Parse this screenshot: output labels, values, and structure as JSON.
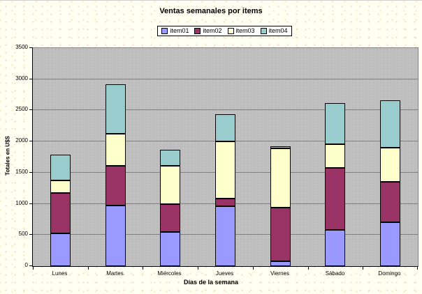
{
  "chart_data": {
    "type": "bar",
    "stacked": true,
    "title": "Ventas semanales por items",
    "xlabel": "Días de la semana",
    "ylabel": "Totales en U$S",
    "categories": [
      "Lunes",
      "Martes",
      "Miércoles",
      "Jueves",
      "Viernes",
      "Sábado",
      "Domingo"
    ],
    "series": [
      {
        "name": "item01",
        "color": "#9999FF",
        "values": [
          520,
          970,
          550,
          960,
          80,
          580,
          700
        ]
      },
      {
        "name": "item02",
        "color": "#993366",
        "values": [
          650,
          640,
          450,
          130,
          860,
          1000,
          650
        ]
      },
      {
        "name": "item03",
        "color": "#FFFFCC",
        "values": [
          200,
          520,
          610,
          910,
          950,
          380,
          550
        ]
      },
      {
        "name": "item04",
        "color": "#99CCCC",
        "values": [
          420,
          790,
          260,
          440,
          30,
          660,
          760
        ]
      }
    ],
    "ylim": [
      0,
      3500
    ],
    "yticks": [
      0,
      500,
      1000,
      1500,
      2000,
      2500,
      3000,
      3500
    ],
    "grid": true,
    "legend_position": "top-center",
    "plot_background": "#C0C0C0",
    "gridline_color": "#808080",
    "page_background": "#FFFFF0"
  }
}
